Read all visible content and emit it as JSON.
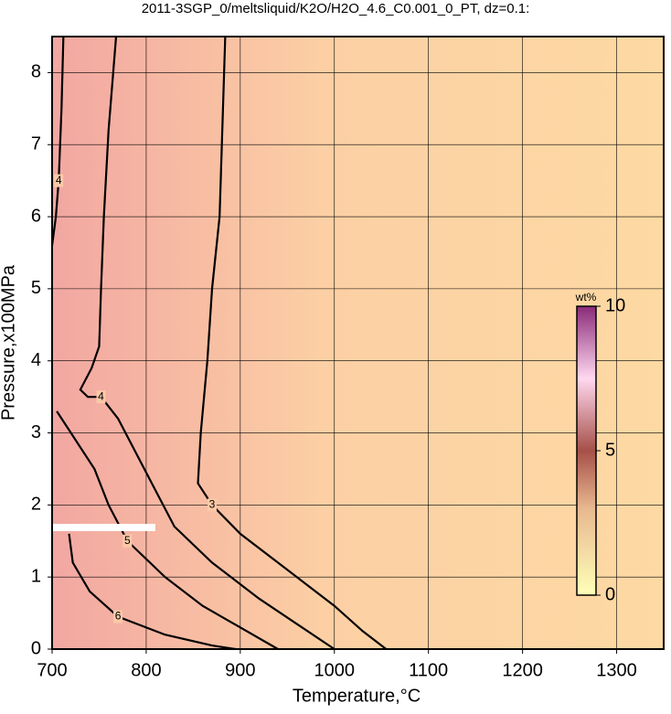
{
  "chart_data": {
    "type": "contour",
    "title": "2011-3SGP_0/meltsliquid/K2O/H2O_4.6_C0.001_0_PT, dz=0.1:",
    "x_label": "Temperature,°C",
    "y_label": "Pressure,x100MPa",
    "xlim": [
      700,
      1350
    ],
    "ylim": [
      0,
      8.5
    ],
    "xticks": [
      700,
      800,
      900,
      1000,
      1100,
      1200,
      1300
    ],
    "yticks": [
      0,
      1,
      2,
      3,
      4,
      5,
      6,
      7,
      8
    ],
    "grid": true,
    "contours": [
      {
        "level": 3,
        "x": [
          884,
          878,
          870,
          865,
          858,
          855,
          870,
          900,
          950,
          1000,
          1030,
          1055
        ],
        "y": [
          8.5,
          6,
          5,
          4,
          3,
          2.3,
          2,
          1.6,
          1.1,
          0.6,
          0.25,
          0
        ]
      },
      {
        "level": 4,
        "x": [
          768,
          760,
          755,
          752,
          750,
          742,
          730,
          738,
          752,
          770,
          790,
          810,
          830,
          870,
          920,
          960,
          1000
        ],
        "y": [
          8.5,
          7.2,
          6,
          5,
          4.2,
          3.9,
          3.6,
          3.5,
          3.5,
          3.2,
          2.7,
          2.2,
          1.7,
          1.2,
          0.7,
          0.35,
          0
        ]
      },
      {
        "level": 4,
        "x": [
          712,
          710,
          707,
          704,
          700
        ],
        "y": [
          8.5,
          7.5,
          6.5,
          6,
          5.6
        ]
      },
      {
        "level": 5,
        "x": [
          705,
          720,
          745,
          760,
          780,
          820,
          860,
          900,
          940
        ],
        "y": [
          3.3,
          3,
          2.5,
          2,
          1.5,
          1.0,
          0.6,
          0.3,
          0
        ]
      },
      {
        "level": 6,
        "x": [
          718,
          722,
          740,
          770,
          820,
          870,
          895
        ],
        "y": [
          1.6,
          1.2,
          0.8,
          0.45,
          0.2,
          0.05,
          0
        ]
      }
    ],
    "colorbar": {
      "label": "wt%",
      "lim": [
        0,
        10
      ],
      "ticks": [
        0,
        5,
        10
      ]
    }
  }
}
